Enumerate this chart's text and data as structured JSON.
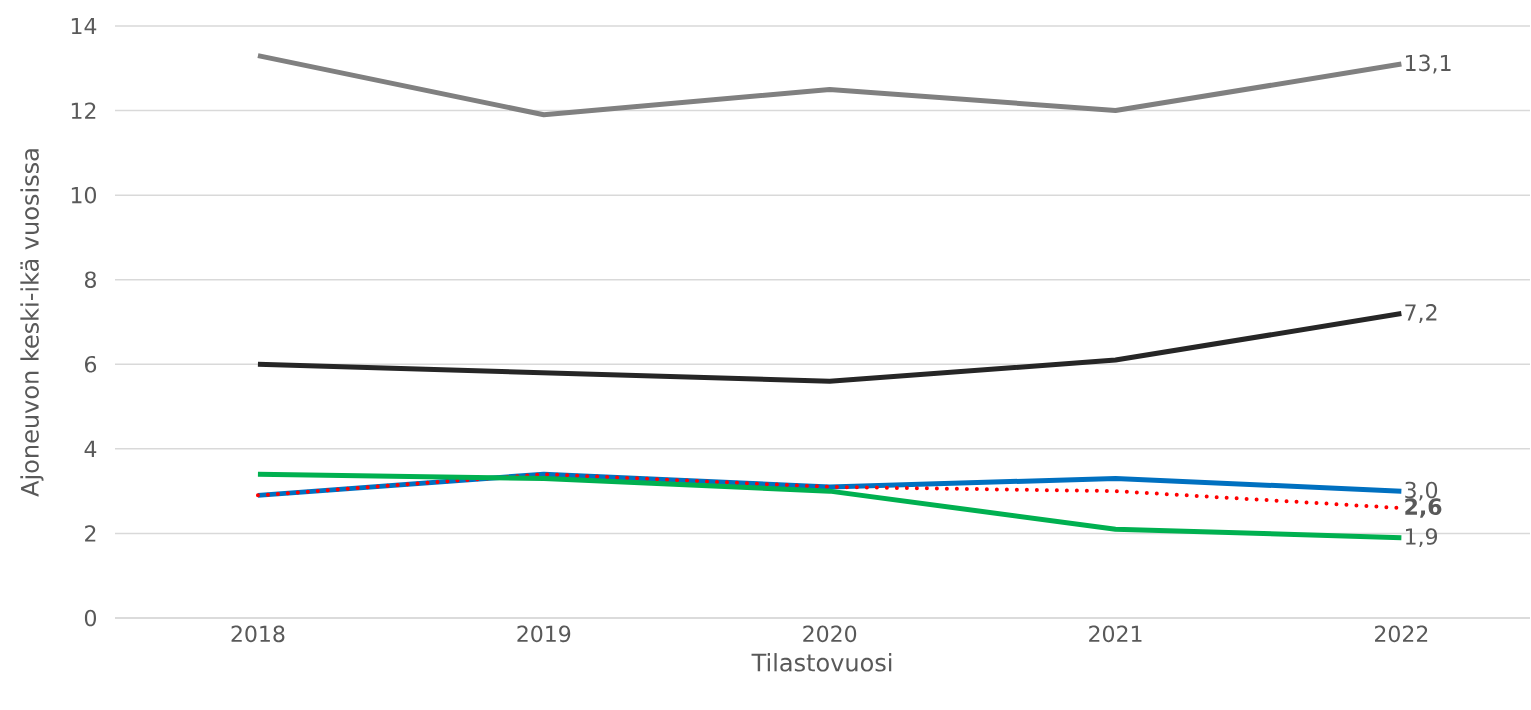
{
  "chart_data": {
    "type": "line",
    "xlabel": "Tilastovuosi",
    "ylabel": "Ajoneuvon keski-ikä vuosissa",
    "categories": [
      "2018",
      "2019",
      "2020",
      "2021",
      "2022"
    ],
    "series": [
      {
        "color": "#808080",
        "values": [
          13.3,
          11.9,
          12.5,
          12.0,
          13.1
        ],
        "value_labels": [
          null,
          null,
          null,
          null,
          "13,1"
        ]
      },
      {
        "color": "#262626",
        "values": [
          6.0,
          5.8,
          5.6,
          6.1,
          7.2
        ],
        "value_labels": [
          null,
          null,
          null,
          null,
          "7,2"
        ]
      },
      {
        "color": "#0070c0",
        "values": [
          2.9,
          3.4,
          3.1,
          3.3,
          3.0
        ],
        "value_labels": [
          null,
          null,
          null,
          null,
          "3,0"
        ]
      },
      {
        "color": "#ff0000",
        "line_style": "dotted",
        "values": [
          2.9,
          3.4,
          3.1,
          3.0,
          2.6
        ],
        "value_labels": [
          null,
          null,
          null,
          null,
          "**2,6**"
        ]
      },
      {
        "color": "#00b050",
        "values": [
          3.4,
          3.3,
          3.0,
          2.1,
          1.9
        ],
        "value_labels": [
          null,
          null,
          null,
          null,
          "1,9"
        ]
      }
    ],
    "ylim": [
      0,
      14
    ],
    "yticks": [
      0,
      2,
      4,
      6,
      8,
      10,
      12,
      14
    ],
    "grid": "y",
    "marker": "none",
    "line_style": "solid"
  }
}
